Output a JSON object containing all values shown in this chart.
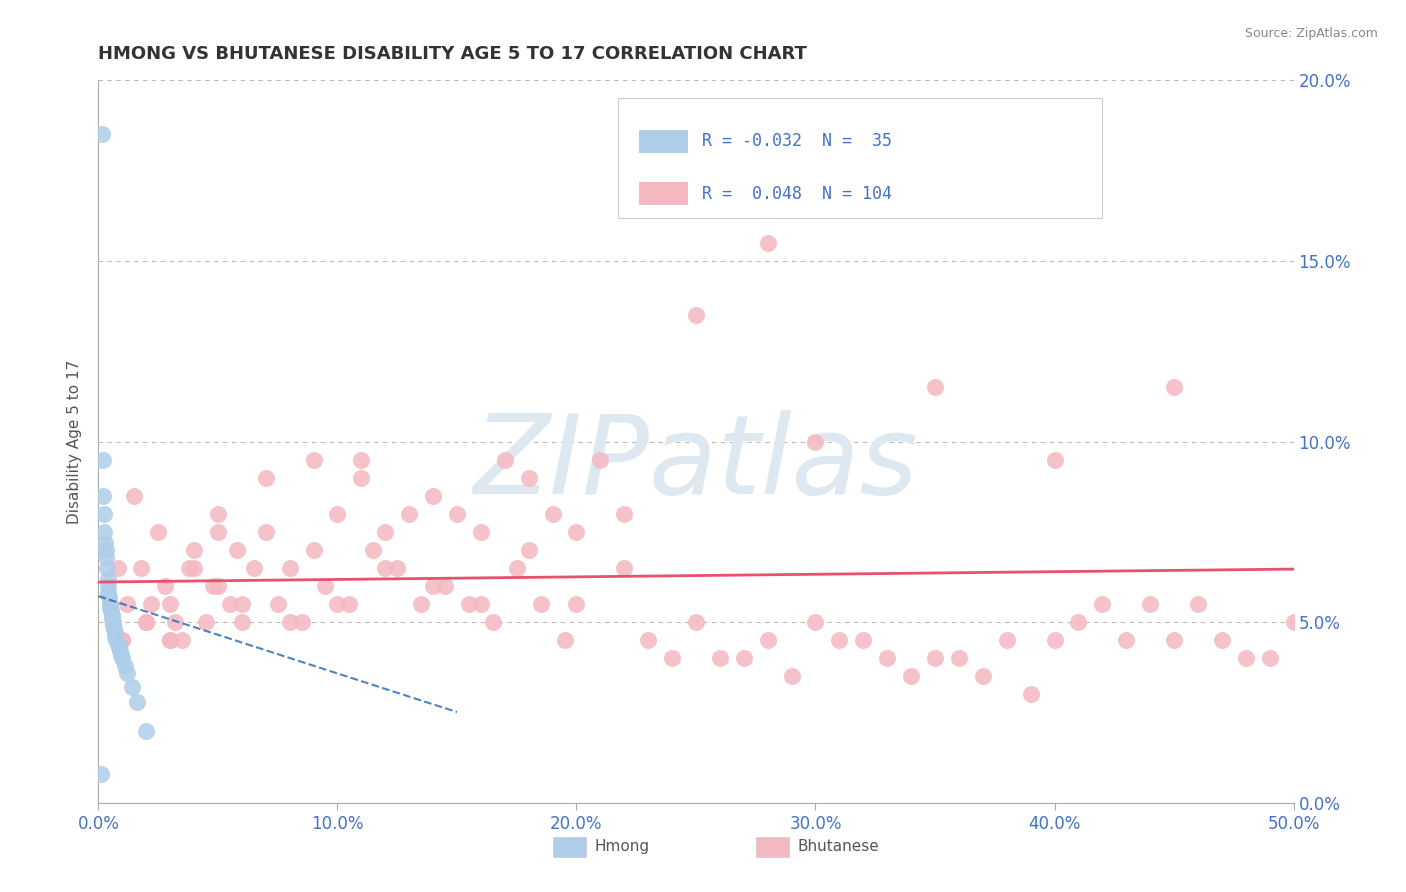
{
  "title": "HMONG VS BHUTANESE DISABILITY AGE 5 TO 17 CORRELATION CHART",
  "source": "Source: ZipAtlas.com",
  "xlabel_ticks": [
    "0.0%",
    "10.0%",
    "20.0%",
    "30.0%",
    "40.0%",
    "50.0%"
  ],
  "xlabel_vals": [
    0.0,
    10.0,
    20.0,
    30.0,
    40.0,
    50.0
  ],
  "ylabel_ticks": [
    "0.0%",
    "5.0%",
    "10.0%",
    "15.0%",
    "20.0%"
  ],
  "ylabel_vals": [
    0.0,
    5.0,
    10.0,
    15.0,
    20.0
  ],
  "xlim": [
    0.0,
    50.0
  ],
  "ylim": [
    0.0,
    20.0
  ],
  "ylabel": "Disability Age 5 to 17",
  "hmong_R": -0.032,
  "hmong_N": 35,
  "bhutanese_R": 0.048,
  "bhutanese_N": 104,
  "hmong_color": "#aecde8",
  "hmong_dark_color": "#4472c4",
  "bhutanese_color": "#f4b8c1",
  "bhutanese_dark_color": "#e8516a",
  "hmong_line_color": "#2166ac",
  "bhutanese_line_color": "#e8516a",
  "watermark": "ZIPatlas",
  "watermark_color": "#dde8f0",
  "background_color": "#ffffff",
  "grid_color": "#cccccc",
  "tick_color": "#4472c4",
  "hmong_x": [
    0.15,
    0.18,
    0.2,
    0.22,
    0.25,
    0.28,
    0.3,
    0.32,
    0.35,
    0.38,
    0.4,
    0.42,
    0.45,
    0.48,
    0.5,
    0.52,
    0.55,
    0.58,
    0.6,
    0.62,
    0.65,
    0.68,
    0.7,
    0.75,
    0.8,
    0.85,
    0.9,
    0.95,
    1.0,
    1.1,
    1.2,
    1.4,
    1.6,
    2.0,
    0.1
  ],
  "hmong_y": [
    18.5,
    9.5,
    8.5,
    8.0,
    7.5,
    7.2,
    7.0,
    6.8,
    6.5,
    6.2,
    6.0,
    5.8,
    5.7,
    5.5,
    5.4,
    5.3,
    5.2,
    5.1,
    5.0,
    4.9,
    4.8,
    4.7,
    4.6,
    4.5,
    4.4,
    4.3,
    4.2,
    4.1,
    4.0,
    3.8,
    3.6,
    3.2,
    2.8,
    2.0,
    0.8
  ],
  "bhutanese_x": [
    0.5,
    0.8,
    1.0,
    1.5,
    1.8,
    2.0,
    2.2,
    2.5,
    2.8,
    3.0,
    3.2,
    3.5,
    3.8,
    4.0,
    4.5,
    4.8,
    5.0,
    5.5,
    5.8,
    6.0,
    6.5,
    7.0,
    7.5,
    8.0,
    8.5,
    9.0,
    9.5,
    10.0,
    10.5,
    11.0,
    11.5,
    12.0,
    12.5,
    13.0,
    13.5,
    14.0,
    14.5,
    15.0,
    15.5,
    16.0,
    16.5,
    17.0,
    17.5,
    18.0,
    18.5,
    19.0,
    19.5,
    20.0,
    21.0,
    22.0,
    23.0,
    24.0,
    25.0,
    26.0,
    27.0,
    28.0,
    29.0,
    30.0,
    31.0,
    32.0,
    33.0,
    34.0,
    35.0,
    36.0,
    37.0,
    38.0,
    39.0,
    40.0,
    41.0,
    42.0,
    43.0,
    44.0,
    45.0,
    46.0,
    47.0,
    48.0,
    49.0,
    50.0,
    1.2,
    2.0,
    3.0,
    4.0,
    5.0,
    6.0,
    8.0,
    10.0,
    12.0,
    14.0,
    16.0,
    18.0,
    20.0,
    22.0,
    25.0,
    28.0,
    30.0,
    35.0,
    40.0,
    45.0,
    1.0,
    3.0,
    5.0,
    7.0,
    9.0,
    11.0
  ],
  "bhutanese_y": [
    5.5,
    6.5,
    4.5,
    8.5,
    6.5,
    5.0,
    5.5,
    7.5,
    6.0,
    4.5,
    5.0,
    4.5,
    6.5,
    7.0,
    5.0,
    6.0,
    7.5,
    5.5,
    7.0,
    5.0,
    6.5,
    7.5,
    5.5,
    6.5,
    5.0,
    7.0,
    6.0,
    8.0,
    5.5,
    9.5,
    7.0,
    7.5,
    6.5,
    8.0,
    5.5,
    8.5,
    6.0,
    8.0,
    5.5,
    7.5,
    5.0,
    9.5,
    6.5,
    9.0,
    5.5,
    8.0,
    4.5,
    5.5,
    9.5,
    6.5,
    4.5,
    4.0,
    5.0,
    4.0,
    4.0,
    4.5,
    3.5,
    5.0,
    4.5,
    4.5,
    4.0,
    3.5,
    4.0,
    4.0,
    3.5,
    4.5,
    3.0,
    4.5,
    5.0,
    5.5,
    4.5,
    5.5,
    4.5,
    5.5,
    4.5,
    4.0,
    4.0,
    5.0,
    5.5,
    5.0,
    5.5,
    6.5,
    6.0,
    5.5,
    5.0,
    5.5,
    6.5,
    6.0,
    5.5,
    7.0,
    7.5,
    8.0,
    13.5,
    15.5,
    10.0,
    11.5,
    9.5,
    11.5,
    4.5,
    4.5,
    8.0,
    9.0,
    9.5,
    9.0
  ]
}
